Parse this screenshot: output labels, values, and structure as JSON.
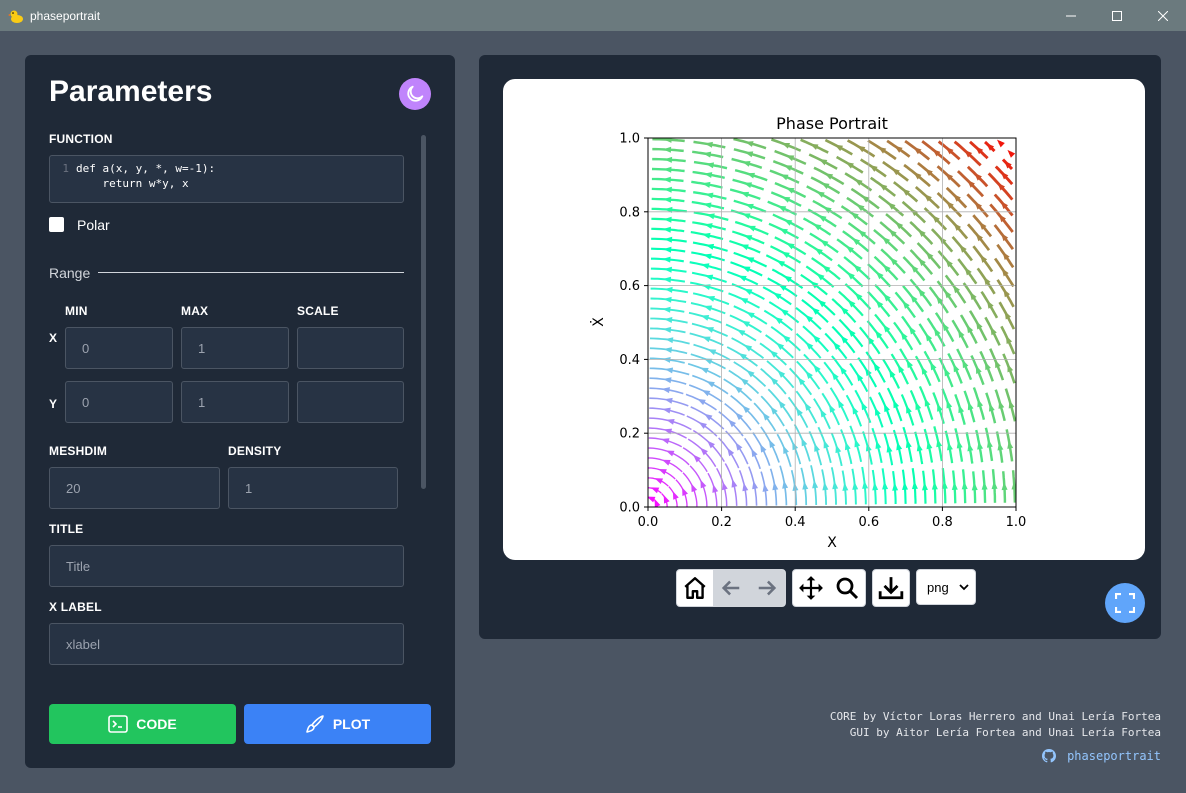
{
  "window": {
    "title": "phaseportrait"
  },
  "params": {
    "heading": "Parameters",
    "function_label": "FUNCTION",
    "code_lines": [
      {
        "num": "1",
        "text": "def a(x, y, *, w=-1):"
      },
      {
        "num": "",
        "text": "    return w*y, x"
      }
    ],
    "polar_label": "Polar",
    "polar_checked": false,
    "range_label": "Range",
    "col_min": "MIN",
    "col_max": "MAX",
    "col_scale": "SCALE",
    "row_x": "X",
    "row_y": "Y",
    "x_min": "0",
    "x_max": "1",
    "x_scale": "",
    "y_min": "0",
    "y_max": "1",
    "y_scale": "",
    "meshdim_label": "MESHDIM",
    "meshdim_value": "20",
    "density_label": "DENSITY",
    "density_value": "1",
    "title_label": "TITLE",
    "title_placeholder": "Title",
    "xlabel_label": "X LABEL",
    "xlabel_placeholder": "xlabel",
    "code_button": "CODE",
    "plot_button": "PLOT"
  },
  "plot": {
    "format": "png"
  },
  "chart_data": {
    "type": "streamplot",
    "title": "Phase Portrait",
    "xlabel": "X",
    "ylabel": "Ẋ",
    "xlim": [
      0,
      1
    ],
    "ylim": [
      0,
      1
    ],
    "xticks": [
      "0.0",
      "0.2",
      "0.4",
      "0.6",
      "0.8",
      "1.0"
    ],
    "yticks": [
      "0.0",
      "0.2",
      "0.4",
      "0.6",
      "0.8",
      "1.0"
    ],
    "grid": true,
    "field": "dx/dt = -y, dy/dt = x",
    "colormap": "rainbow"
  },
  "credits": {
    "line1": "CORE by Víctor Loras Herrero and Unai Lería Fortea",
    "line2": "GUI by Aitor Lería Fortea and Unai Lería Fortea",
    "link": "phaseportrait"
  },
  "colors": {
    "code_button": "#22c55e",
    "plot_button": "#3b82f6",
    "theme_button": "#c084fc",
    "fullscreen_button": "#60a5fa",
    "panel": "#1f2937",
    "background": "#4b5563"
  }
}
